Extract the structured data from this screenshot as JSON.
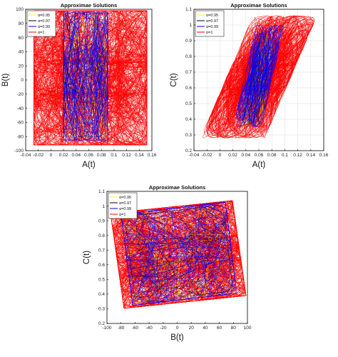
{
  "chart_data": [
    {
      "type": "line",
      "title": "Approximae Solutions",
      "xlabel": "A(t)",
      "ylabel": "B(t)",
      "xlim": [
        -0.04,
        0.16
      ],
      "ylim": [
        -100,
        100
      ],
      "xticks": [
        "-0.04",
        "-0.02",
        "0",
        "0.02",
        "0.04",
        "0.06",
        "0.08",
        "0.1",
        "0.12",
        "0.14",
        "0.16"
      ],
      "yticks": [
        "-100",
        "-80",
        "-60",
        "-40",
        "-20",
        "0",
        "20",
        "40",
        "60",
        "80",
        "100"
      ],
      "grid": true,
      "legend": "top-left",
      "series": [
        {
          "name": "α=0.95",
          "color": "#ffff00",
          "x_range": [
            0.02,
            0.09
          ],
          "y_range": [
            -80,
            95
          ]
        },
        {
          "name": "α=0.97",
          "color": "#000000",
          "x_range": [
            0.02,
            0.09
          ],
          "y_range": [
            -80,
            95
          ]
        },
        {
          "name": "α=0.99",
          "color": "#0000ff",
          "x_range": [
            0.02,
            0.09
          ],
          "y_range": [
            -85,
            95
          ]
        },
        {
          "name": "α=1",
          "color": "#ff0000",
          "x_range": [
            -0.027,
            0.152
          ],
          "y_range": [
            -92,
            98
          ]
        }
      ]
    },
    {
      "type": "line",
      "title": "Approximae Solutions",
      "xlabel": "A(t)",
      "ylabel": "C(t)",
      "xlim": [
        -0.04,
        0.16
      ],
      "ylim": [
        0.2,
        1.1
      ],
      "xticks": [
        "-0.04",
        "-0.02",
        "0",
        "0.02",
        "0.04",
        "0.06",
        "0.08",
        "0.1",
        "0.12",
        "0.14",
        "0.16"
      ],
      "yticks": [
        "0.2",
        "0.3",
        "0.4",
        "0.5",
        "0.6",
        "0.7",
        "0.8",
        "0.9",
        "1",
        "1.1"
      ],
      "grid": true,
      "legend": "top-left",
      "series": [
        {
          "name": "α=0.95",
          "color": "#ffff00",
          "x_range": [
            0.03,
            0.09
          ],
          "y_range": [
            0.35,
            0.95
          ]
        },
        {
          "name": "α=0.97",
          "color": "#000000",
          "x_range": [
            0.03,
            0.09
          ],
          "y_range": [
            0.35,
            0.95
          ]
        },
        {
          "name": "α=0.99",
          "color": "#0000ff",
          "x_range": [
            0.02,
            0.1
          ],
          "y_range": [
            0.35,
            1.0
          ]
        },
        {
          "name": "α=1",
          "color": "#ff0000",
          "x_range": [
            -0.03,
            0.15
          ],
          "y_range": [
            0.28,
            1.06
          ]
        }
      ]
    },
    {
      "type": "line",
      "title": "Approximae Solutions",
      "xlabel": "B(t)",
      "ylabel": "C(t)",
      "xlim": [
        -100,
        100
      ],
      "ylim": [
        0.2,
        1.1
      ],
      "xticks": [
        "-100",
        "-80",
        "-60",
        "-40",
        "-20",
        "0",
        "20",
        "40",
        "60",
        "80",
        "100"
      ],
      "yticks": [
        "0.2",
        "0.3",
        "0.4",
        "0.5",
        "0.6",
        "0.7",
        "0.8",
        "0.9",
        "1",
        "1.1"
      ],
      "grid": false,
      "legend": "top-left",
      "series": [
        {
          "name": "α=0.95",
          "color": "#ffff00",
          "x_range": [
            -75,
            80
          ],
          "y_range": [
            0.35,
            1.0
          ]
        },
        {
          "name": "α=0.97",
          "color": "#000000",
          "x_range": [
            -75,
            80
          ],
          "y_range": [
            0.35,
            1.0
          ]
        },
        {
          "name": "α=0.99",
          "color": "#0000ff",
          "x_range": [
            -80,
            85
          ],
          "y_range": [
            0.33,
            1.02
          ]
        },
        {
          "name": "α=1",
          "color": "#ff0000",
          "x_range": [
            -95,
            98
          ],
          "y_range": [
            0.31,
            1.03
          ]
        }
      ]
    }
  ]
}
